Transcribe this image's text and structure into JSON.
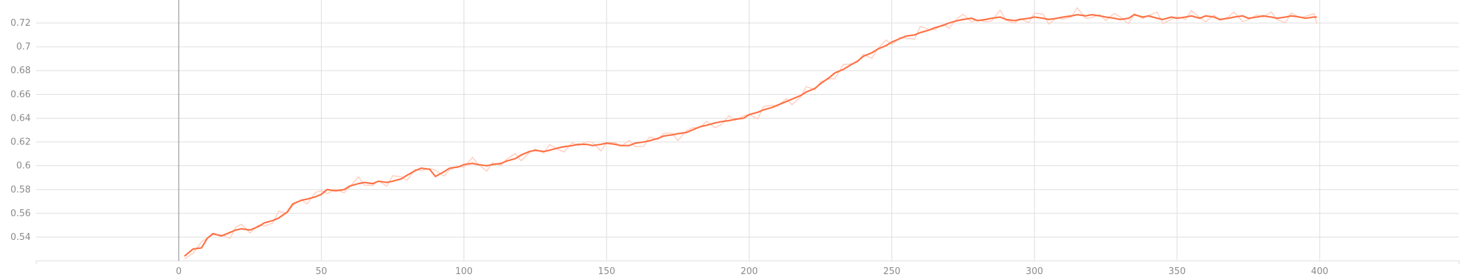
{
  "chart_data": {
    "type": "line",
    "title": "",
    "xlabel": "",
    "ylabel": "",
    "xlim": [
      -50,
      450
    ],
    "ylim": [
      0.525,
      0.728
    ],
    "grid": true,
    "x_ticks": [
      0,
      50,
      100,
      150,
      200,
      250,
      300,
      350,
      400
    ],
    "x_tick_labels": [
      "0",
      "50",
      "100",
      "150",
      "200",
      "250",
      "300",
      "350",
      "400"
    ],
    "y_ticks": [
      0.54,
      0.56,
      0.58,
      0.6,
      0.62,
      0.64,
      0.66,
      0.68,
      0.7,
      0.72
    ],
    "y_tick_labels": [
      "0.54",
      "0.56",
      "0.58",
      "0.6",
      "0.62",
      "0.64",
      "0.66",
      "0.68",
      "0.7",
      "0.72"
    ],
    "colors": {
      "smoothed": "#ff7043",
      "raw": "#ffccbc",
      "grid": "#dddddd",
      "zero_line": "#999999",
      "tick_text": "#8a8a8a"
    },
    "series": [
      {
        "style": "smoothed",
        "x": [
          2,
          5,
          8,
          10,
          12,
          15,
          18,
          20,
          22,
          25,
          28,
          30,
          33,
          35,
          38,
          40,
          43,
          45,
          48,
          50,
          52,
          55,
          58,
          60,
          63,
          65,
          68,
          70,
          73,
          75,
          78,
          80,
          83,
          85,
          88,
          90,
          93,
          95,
          98,
          100,
          103,
          105,
          108,
          110,
          113,
          115,
          118,
          120,
          123,
          125,
          128,
          130,
          133,
          135,
          138,
          140,
          143,
          145,
          148,
          150,
          153,
          155,
          158,
          160,
          163,
          165,
          168,
          170,
          173,
          175,
          178,
          180,
          183,
          185,
          188,
          190,
          193,
          195,
          198,
          200,
          203,
          205,
          208,
          210,
          213,
          215,
          218,
          220,
          223,
          225,
          228,
          230,
          233,
          235,
          238,
          240,
          243,
          245,
          248,
          250,
          253,
          255,
          258,
          260,
          263,
          265,
          268,
          270,
          273,
          275,
          278,
          280,
          283,
          285,
          288,
          290,
          293,
          295,
          298,
          300,
          303,
          305,
          308,
          310,
          313,
          315,
          318,
          320,
          323,
          325,
          328,
          330,
          333,
          335,
          338,
          340,
          343,
          345,
          348,
          350,
          353,
          355,
          358,
          360,
          363,
          365,
          368,
          370,
          373,
          375,
          378,
          380,
          383,
          385,
          388,
          390,
          393,
          395,
          398,
          399
        ],
        "y": [
          0.524,
          0.53,
          0.531,
          0.539,
          0.543,
          0.541,
          0.544,
          0.546,
          0.547,
          0.546,
          0.549,
          0.552,
          0.554,
          0.556,
          0.561,
          0.568,
          0.571,
          0.572,
          0.574,
          0.576,
          0.58,
          0.579,
          0.58,
          0.583,
          0.585,
          0.586,
          0.585,
          0.587,
          0.586,
          0.587,
          0.589,
          0.592,
          0.596,
          0.598,
          0.597,
          0.591,
          0.595,
          0.598,
          0.599,
          0.601,
          0.602,
          0.601,
          0.6,
          0.601,
          0.602,
          0.604,
          0.606,
          0.609,
          0.612,
          0.613,
          0.612,
          0.613,
          0.615,
          0.616,
          0.617,
          0.618,
          0.618,
          0.617,
          0.618,
          0.619,
          0.618,
          0.617,
          0.617,
          0.619,
          0.62,
          0.621,
          0.623,
          0.625,
          0.626,
          0.627,
          0.628,
          0.63,
          0.633,
          0.634,
          0.636,
          0.637,
          0.638,
          0.639,
          0.64,
          0.643,
          0.645,
          0.647,
          0.649,
          0.651,
          0.654,
          0.656,
          0.659,
          0.662,
          0.665,
          0.669,
          0.674,
          0.678,
          0.681,
          0.684,
          0.688,
          0.692,
          0.695,
          0.698,
          0.701,
          0.704,
          0.707,
          0.709,
          0.71,
          0.712,
          0.714,
          0.716,
          0.718,
          0.72,
          0.722,
          0.723,
          0.724,
          0.722,
          0.723,
          0.724,
          0.725,
          0.723,
          0.722,
          0.723,
          0.724,
          0.725,
          0.724,
          0.723,
          0.724,
          0.725,
          0.726,
          0.727,
          0.726,
          0.727,
          0.726,
          0.725,
          0.724,
          0.723,
          0.724,
          0.727,
          0.725,
          0.726,
          0.724,
          0.723,
          0.725,
          0.724,
          0.725,
          0.726,
          0.724,
          0.726,
          0.725,
          0.723,
          0.724,
          0.725,
          0.726,
          0.724,
          0.725,
          0.726,
          0.725,
          0.724,
          0.725,
          0.726,
          0.725,
          0.724,
          0.725,
          0.725
        ]
      }
    ]
  }
}
